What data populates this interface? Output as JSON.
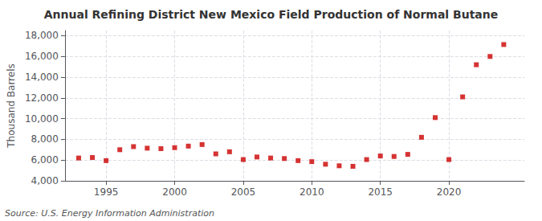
{
  "chart_data": {
    "type": "scatter",
    "title": "Annual Refining District New Mexico Field Production of Normal Butane",
    "ylabel": "Thousand Barrels",
    "annotation": "Source: U.S. Energy Information Administration",
    "x": [
      1993,
      1994,
      1995,
      1996,
      1997,
      1998,
      1999,
      2000,
      2001,
      2002,
      2003,
      2004,
      2005,
      2006,
      2007,
      2008,
      2009,
      2010,
      2011,
      2012,
      2013,
      2014,
      2015,
      2016,
      2017,
      2018,
      2019,
      2020,
      2021,
      2022,
      2023,
      2024
    ],
    "values": [
      6200,
      6250,
      5950,
      7000,
      7300,
      7150,
      7100,
      7200,
      7350,
      7500,
      6600,
      6800,
      6050,
      6300,
      6200,
      6150,
      5950,
      5850,
      5600,
      5450,
      5400,
      6050,
      6400,
      6350,
      6550,
      8200,
      10100,
      6050,
      12100,
      15200,
      16000,
      17150
    ],
    "color": "#CC0000",
    "marker": "square",
    "xlim": [
      1992.0,
      2025.5
    ],
    "xticks": [
      1995,
      2000,
      2005,
      2010,
      2015,
      2020
    ],
    "ylim": [
      4000,
      18500
    ],
    "yticks": [
      {
        "value": 4000,
        "label": "4,000"
      },
      {
        "value": 6000,
        "label": "6,000"
      },
      {
        "value": 8000,
        "label": "8,000"
      },
      {
        "value": 10000,
        "label": "10,000"
      },
      {
        "value": 12000,
        "label": "12,000"
      },
      {
        "value": 14000,
        "label": "14,000"
      },
      {
        "value": 16000,
        "label": "16,000"
      },
      {
        "value": 18000,
        "label": "18,000"
      }
    ],
    "grid": true
  }
}
